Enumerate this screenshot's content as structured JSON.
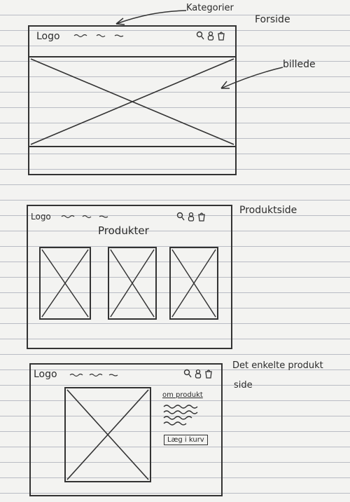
{
  "annotations": {
    "kategorier": "Kategorier",
    "forside": "Forside",
    "billede": "billede",
    "produktside": "Produktside",
    "det_enkelte_produkt_line1": "Det enkelte produkt",
    "det_enkelte_produkt_line2": "side"
  },
  "forside": {
    "logo": "Logo"
  },
  "produktside": {
    "logo": "Logo",
    "title": "Produkter"
  },
  "produkt": {
    "logo": "Logo",
    "om_produkt": "om produkt",
    "add_to_cart": "Læg i kurv"
  },
  "icons": [
    "search-icon",
    "user-icon",
    "cart-icon"
  ]
}
